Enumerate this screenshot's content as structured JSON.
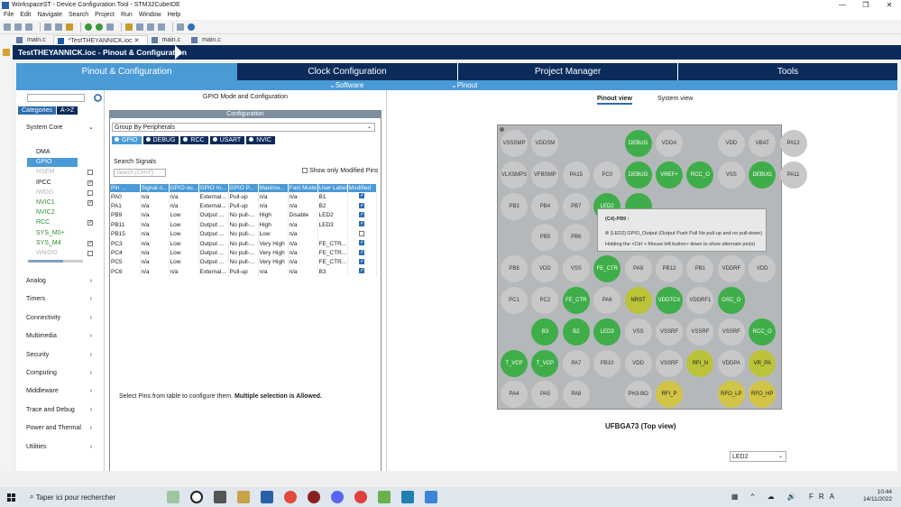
{
  "window": {
    "title": "WorkspaceST - Device Configuration Tool - STM32CubeIDE"
  },
  "window_controls": {
    "minimize": "—",
    "maximize": "❐",
    "close": "✕"
  },
  "menu": [
    "File",
    "Edit",
    "Navigate",
    "Search",
    "Project",
    "Run",
    "Window",
    "Help"
  ],
  "editor_tabs": [
    {
      "label": "main.c",
      "active": false
    },
    {
      "label": "*TestTHEYANNICK.ioc",
      "active": true
    },
    {
      "label": "main.c",
      "active": false
    },
    {
      "label": "main.c",
      "active": false
    }
  ],
  "editor": {
    "title": "TestTHEYANNICK.ioc - Pinout & Configuration"
  },
  "nav_tabs": [
    "Pinout & Configuration",
    "Clock Configuration",
    "Project Manager",
    "Tools"
  ],
  "sub_nav": {
    "software_packs": "Software Packs",
    "pinout": "Pinout"
  },
  "categories": {
    "tabs": [
      "Categories",
      "A->Z"
    ],
    "system_core": "System Core",
    "peripherals": [
      {
        "name": "DMA",
        "style": "normal",
        "check": "none"
      },
      {
        "name": "GPIO",
        "style": "selected",
        "check": "none"
      },
      {
        "name": "HSEM",
        "style": "grey",
        "check": "off"
      },
      {
        "name": "IPCC",
        "style": "normal",
        "check": "on"
      },
      {
        "name": "IWDG",
        "style": "grey",
        "check": "off"
      },
      {
        "name": "NVIC1",
        "style": "green",
        "check": "on"
      },
      {
        "name": "NVIC2",
        "style": "green",
        "check": "none"
      },
      {
        "name": "RCC",
        "style": "green",
        "check": "on"
      },
      {
        "name": "SYS_M0+",
        "style": "green",
        "check": "none"
      },
      {
        "name": "SYS_M4",
        "style": "green",
        "check": "on"
      },
      {
        "name": "WWDG",
        "style": "grey",
        "check": "off"
      }
    ],
    "groups": [
      "Analog",
      "Timers",
      "Connectivity",
      "Multimedia",
      "Security",
      "Computing",
      "Middleware",
      "Trace and Debug",
      "Power and Thermal",
      "Utilities"
    ]
  },
  "mode_panel": {
    "title": "GPIO Mode and Configuration",
    "configuration": "Configuration",
    "group_by": "Group By Peripherals",
    "tabs": [
      "GPIO",
      "DEBUG",
      "RCC",
      "USART",
      "NVIC"
    ],
    "search_label": "Search Signals",
    "search_placeholder": "Search (Ctrl+F)",
    "show_modified": "Show only Modified Pins",
    "columns": [
      "Pin ...",
      "Signal o...",
      "GPIO ou...",
      "GPIO m...",
      "GPIO P...",
      "Maximu...",
      "Fast Mode",
      "User Label",
      "Modified"
    ],
    "rows": [
      {
        "pin": "PA0",
        "signal": "n/a",
        "out": "n/a",
        "mode": "External...",
        "pull": "Pull-up",
        "speed": "n/a",
        "fast": "n/a",
        "label": "B1",
        "modified": true
      },
      {
        "pin": "PA1",
        "signal": "n/a",
        "out": "n/a",
        "mode": "External...",
        "pull": "Pull-up",
        "speed": "n/a",
        "fast": "n/a",
        "label": "B2",
        "modified": true
      },
      {
        "pin": "PB9",
        "signal": "n/a",
        "out": "Low",
        "mode": "Output ...",
        "pull": "No pull-...",
        "speed": "High",
        "fast": "Disable",
        "label": "LED2",
        "modified": true
      },
      {
        "pin": "PB11",
        "signal": "n/a",
        "out": "Low",
        "mode": "Output ...",
        "pull": "No pull-...",
        "speed": "High",
        "fast": "n/a",
        "label": "LED3",
        "modified": true
      },
      {
        "pin": "PB15",
        "signal": "n/a",
        "out": "Low",
        "mode": "Output ...",
        "pull": "No pull-...",
        "speed": "Low",
        "fast": "n/a",
        "label": "",
        "modified": false
      },
      {
        "pin": "PC3",
        "signal": "n/a",
        "out": "Low",
        "mode": "Output ...",
        "pull": "No pull-...",
        "speed": "Very High",
        "fast": "n/a",
        "label": "FE_CTR...",
        "modified": true
      },
      {
        "pin": "PC4",
        "signal": "n/a",
        "out": "Low",
        "mode": "Output ...",
        "pull": "No pull-...",
        "speed": "Very High",
        "fast": "n/a",
        "label": "FE_CTR...",
        "modified": true
      },
      {
        "pin": "PC5",
        "signal": "n/a",
        "out": "Low",
        "mode": "Output ...",
        "pull": "No pull-...",
        "speed": "Very High",
        "fast": "n/a",
        "label": "FE_CTR...",
        "modified": true
      },
      {
        "pin": "PC6",
        "signal": "n/a",
        "out": "n/a",
        "mode": "External...",
        "pull": "Pull-up",
        "speed": "n/a",
        "fast": "n/a",
        "label": "B3",
        "modified": true
      }
    ],
    "select_note": "Select Pins from table to configure them.",
    "select_note_bold": "Multiple selection is Allowed."
  },
  "pinout": {
    "tabs": [
      "Pinout view",
      "System view"
    ],
    "package": "UFBGA73 (Top view)",
    "dropdown_value": "LED2",
    "tooltip": {
      "title": "(C4)-PB9 :",
      "line1": "[LED2] GPIO_Output (Output Push Pull No pull-up and no pull-down)",
      "line2": "Holding the <Ctrl + Mouse left button> down to show alternate pin(s)"
    },
    "grid": [
      [
        {
          "l": "VSSSMP",
          "c": "grey"
        },
        {
          "l": "VDDSM",
          "c": "grey"
        },
        {
          "l": "",
          "c": "none"
        },
        {
          "l": "",
          "c": "none"
        },
        {
          "l": "DEBUG",
          "c": "green"
        },
        {
          "l": "VDDA",
          "c": "grey"
        },
        {
          "l": "",
          "c": "none"
        },
        {
          "l": "VDD",
          "c": "grey"
        },
        {
          "l": "VBAT",
          "c": "grey"
        },
        {
          "l": "PA12",
          "c": "grey"
        }
      ],
      [
        {
          "l": "VLXSMPS",
          "c": "grey"
        },
        {
          "l": "VFBSMP",
          "c": "grey"
        },
        {
          "l": "PA15",
          "c": "grey"
        },
        {
          "l": "PC0",
          "c": "grey"
        },
        {
          "l": "DEBUG",
          "c": "green"
        },
        {
          "l": "VREF+",
          "c": "green"
        },
        {
          "l": "RCC_O",
          "c": "green"
        },
        {
          "l": "VSS",
          "c": "grey"
        },
        {
          "l": "DEBUG",
          "c": "green"
        },
        {
          "l": "PA11",
          "c": "grey"
        }
      ],
      [
        {
          "l": "PB3",
          "c": "grey"
        },
        {
          "l": "PB4",
          "c": "grey"
        },
        {
          "l": "PB7",
          "c": "grey"
        },
        {
          "l": "LED2",
          "c": "green"
        },
        {
          "l": "",
          "c": "green"
        },
        {
          "l": "",
          "c": "none"
        },
        {
          "l": "",
          "c": "none"
        },
        {
          "l": "",
          "c": "none"
        },
        {
          "l": "",
          "c": "none"
        },
        {
          "l": "",
          "c": "none"
        }
      ],
      [
        {
          "l": "",
          "c": "none"
        },
        {
          "l": "PB5",
          "c": "grey"
        },
        {
          "l": "PB6",
          "c": "grey"
        },
        {
          "l": "",
          "c": "none"
        },
        {
          "l": "",
          "c": "none"
        },
        {
          "l": "",
          "c": "none"
        },
        {
          "l": "",
          "c": "none"
        },
        {
          "l": "",
          "c": "none"
        },
        {
          "l": "",
          "c": "none"
        },
        {
          "l": "",
          "c": "none"
        }
      ],
      [
        {
          "l": "PB8",
          "c": "grey"
        },
        {
          "l": "VDD",
          "c": "grey"
        },
        {
          "l": "VSS",
          "c": "grey"
        },
        {
          "l": "FE_CTR",
          "c": "green"
        },
        {
          "l": "PA9",
          "c": "grey"
        },
        {
          "l": "PB12",
          "c": "grey"
        },
        {
          "l": "PB1",
          "c": "grey"
        },
        {
          "l": "VDDRF",
          "c": "grey"
        },
        {
          "l": "VDD",
          "c": "grey"
        },
        {
          "l": "",
          "c": "none"
        }
      ],
      [
        {
          "l": "PC1",
          "c": "grey"
        },
        {
          "l": "PC2",
          "c": "grey"
        },
        {
          "l": "FE_CTR",
          "c": "green"
        },
        {
          "l": "PA6",
          "c": "grey"
        },
        {
          "l": "NRST",
          "c": "olive"
        },
        {
          "l": "VDDTCX",
          "c": "green"
        },
        {
          "l": "VDDRF1",
          "c": "grey"
        },
        {
          "l": "OSC_O",
          "c": "green"
        },
        {
          "l": "",
          "c": "none"
        },
        {
          "l": "",
          "c": "none"
        }
      ],
      [
        {
          "l": "",
          "c": "none"
        },
        {
          "l": "B3",
          "c": "green"
        },
        {
          "l": "B2",
          "c": "green"
        },
        {
          "l": "LED3",
          "c": "green"
        },
        {
          "l": "VSS",
          "c": "grey"
        },
        {
          "l": "VSSRF",
          "c": "grey"
        },
        {
          "l": "VSSRF",
          "c": "grey"
        },
        {
          "l": "VSSRF",
          "c": "grey"
        },
        {
          "l": "RCC_O",
          "c": "green"
        },
        {
          "l": "",
          "c": "none"
        }
      ],
      [
        {
          "l": "T_VCP",
          "c": "green"
        },
        {
          "l": "T_VCP",
          "c": "green"
        },
        {
          "l": "PA7",
          "c": "grey"
        },
        {
          "l": "PB10",
          "c": "grey"
        },
        {
          "l": "VDD",
          "c": "grey"
        },
        {
          "l": "VSSRF",
          "c": "grey"
        },
        {
          "l": "RFI_N",
          "c": "olive"
        },
        {
          "l": "VDDPA",
          "c": "grey"
        },
        {
          "l": "VR_PA",
          "c": "olive"
        },
        {
          "l": "",
          "c": "none"
        }
      ],
      [
        {
          "l": "PA4",
          "c": "grey"
        },
        {
          "l": "PA5",
          "c": "grey"
        },
        {
          "l": "PA8",
          "c": "grey"
        },
        {
          "l": "",
          "c": "none"
        },
        {
          "l": "PH3-BO",
          "c": "grey"
        },
        {
          "l": "RFI_P",
          "c": "olive2"
        },
        {
          "l": "",
          "c": "none"
        },
        {
          "l": "RFO_LP",
          "c": "olive2"
        },
        {
          "l": "RFO_HP",
          "c": "olive2"
        },
        {
          "l": "",
          "c": "none"
        }
      ]
    ]
  },
  "taskbar": {
    "search": "Taper ici pour rechercher",
    "time": "10:44",
    "date": "14/11/2022",
    "lang": "FRA"
  }
}
